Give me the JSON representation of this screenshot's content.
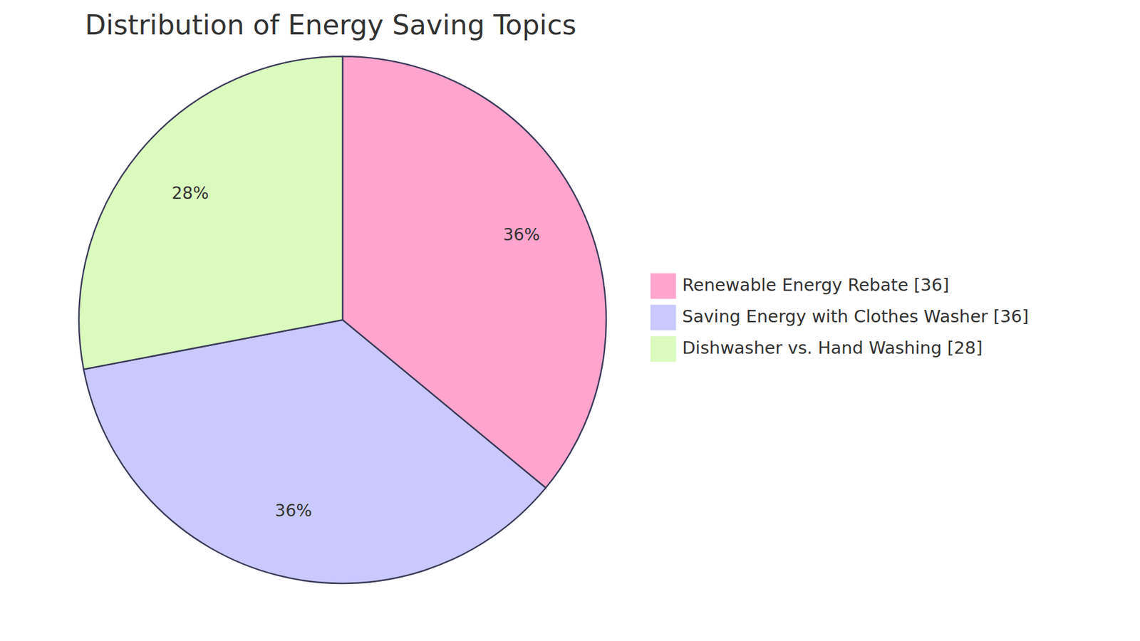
{
  "chart_data": {
    "type": "pie",
    "title": "Distribution of Energy Saving Topics",
    "categories": [
      "Renewable Energy Rebate [36]",
      "Saving Energy with Clothes Washer [36]",
      "Dishwasher vs. Hand Washing [28]"
    ],
    "values": [
      36,
      36,
      28
    ],
    "value_labels": [
      "36%",
      "36%",
      "28%"
    ],
    "colors": [
      "#FFA4CD",
      "#C9C9FF",
      "#DAFABE"
    ],
    "data_labels": true,
    "legend": "right"
  }
}
